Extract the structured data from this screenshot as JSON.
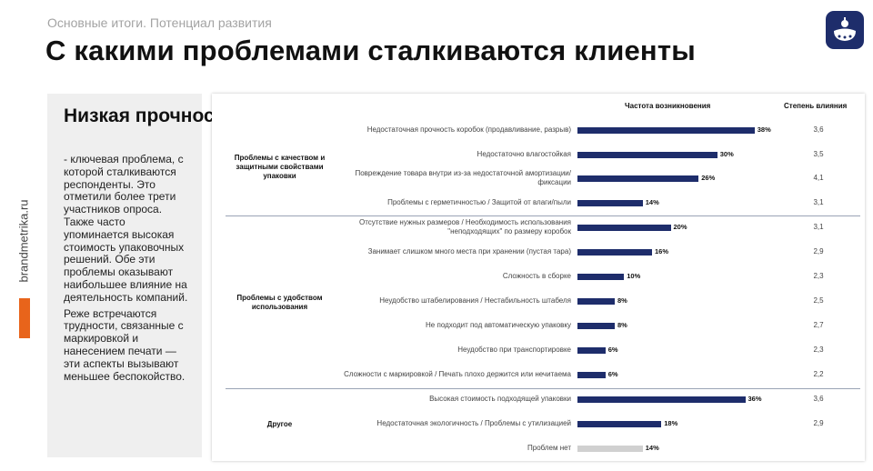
{
  "header": {
    "subtitle": "Основные итоги. Потенциал развития",
    "title": "С какими проблемами сталкиваются клиенты",
    "logo_icon": "brand-logo-icon",
    "logo_color": "#1e2d6b"
  },
  "sidebar": {
    "vertical_text": "brandmetrika.ru",
    "accent_color": "#e8641b"
  },
  "left_panel": {
    "heading": "Низкая прочность",
    "paragraph1": "- ключевая проблема, с которой сталкиваются респонденты. Это отметили более трети участников опроса. Также часто упоминается высокая стоимость упаковочных решений. Обе эти проблемы оказывают наибольшее влияние на деятельность компаний.",
    "paragraph2": "Реже встречаются трудности, связанные с маркировкой и нанесением печати — эти аспекты вызывают меньшее беспокойство."
  },
  "table": {
    "col_frequency": "Частота возникновения",
    "col_influence": "Степень влияния",
    "groups": [
      "Проблемы с качеством и защитными свойствами упаковки",
      "Проблемы с удобством использования",
      "Другое"
    ]
  },
  "chart_data": {
    "type": "bar",
    "orientation": "horizontal",
    "max_value": 40,
    "series_colors": {
      "main": "#1e2d6b",
      "muted": "#d0d0d0"
    },
    "rows": [
      {
        "group": 0,
        "label": "Недостаточная прочность коробок (продавливание, разрыв)",
        "value": 38,
        "value_label": "38%",
        "influence": "3,6"
      },
      {
        "group": 0,
        "label": "Недостаточно влагостойкая",
        "value": 30,
        "value_label": "30%",
        "influence": "3,5"
      },
      {
        "group": 0,
        "label": "Повреждение товара внутри из-за недостаточной амортизации/фиксации",
        "value": 26,
        "value_label": "26%",
        "influence": "4,1"
      },
      {
        "group": 0,
        "label": "Проблемы с герметичностью / Защитой от влаги/пыли",
        "value": 14,
        "value_label": "14%",
        "influence": "3,1"
      },
      {
        "group": 1,
        "label": "Отсутствие нужных размеров / Необходимость использования \"неподходящих\" по размеру коробок",
        "value": 20,
        "value_label": "20%",
        "influence": "3,1"
      },
      {
        "group": 1,
        "label": "Занимает слишком много места при хранении (пустая тара)",
        "value": 16,
        "value_label": "16%",
        "influence": "2,9"
      },
      {
        "group": 1,
        "label": "Сложность в сборке",
        "value": 10,
        "value_label": "10%",
        "influence": "2,3"
      },
      {
        "group": 1,
        "label": "Неудобство штабелирования / Нестабильность штабеля",
        "value": 8,
        "value_label": "8%",
        "influence": "2,5"
      },
      {
        "group": 1,
        "label": "Не подходит под автоматическую упаковку",
        "value": 8,
        "value_label": "8%",
        "influence": "2,7"
      },
      {
        "group": 1,
        "label": "Неудобство при транспортировке",
        "value": 6,
        "value_label": "6%",
        "influence": "2,3"
      },
      {
        "group": 1,
        "label": "Сложности с маркировкой / Печать плохо держится или нечитаема",
        "value": 6,
        "value_label": "6%",
        "influence": "2,2"
      },
      {
        "group": 2,
        "label": "Высокая стоимость подходящей упаковки",
        "value": 36,
        "value_label": "36%",
        "influence": "3,6"
      },
      {
        "group": 2,
        "label": "Недостаточная экологичность / Проблемы с утилизацией",
        "value": 18,
        "value_label": "18%",
        "influence": "2,9"
      },
      {
        "group": 2,
        "label": "Проблем нет",
        "value": 14,
        "value_label": "14%",
        "influence": "",
        "muted": true
      }
    ]
  }
}
